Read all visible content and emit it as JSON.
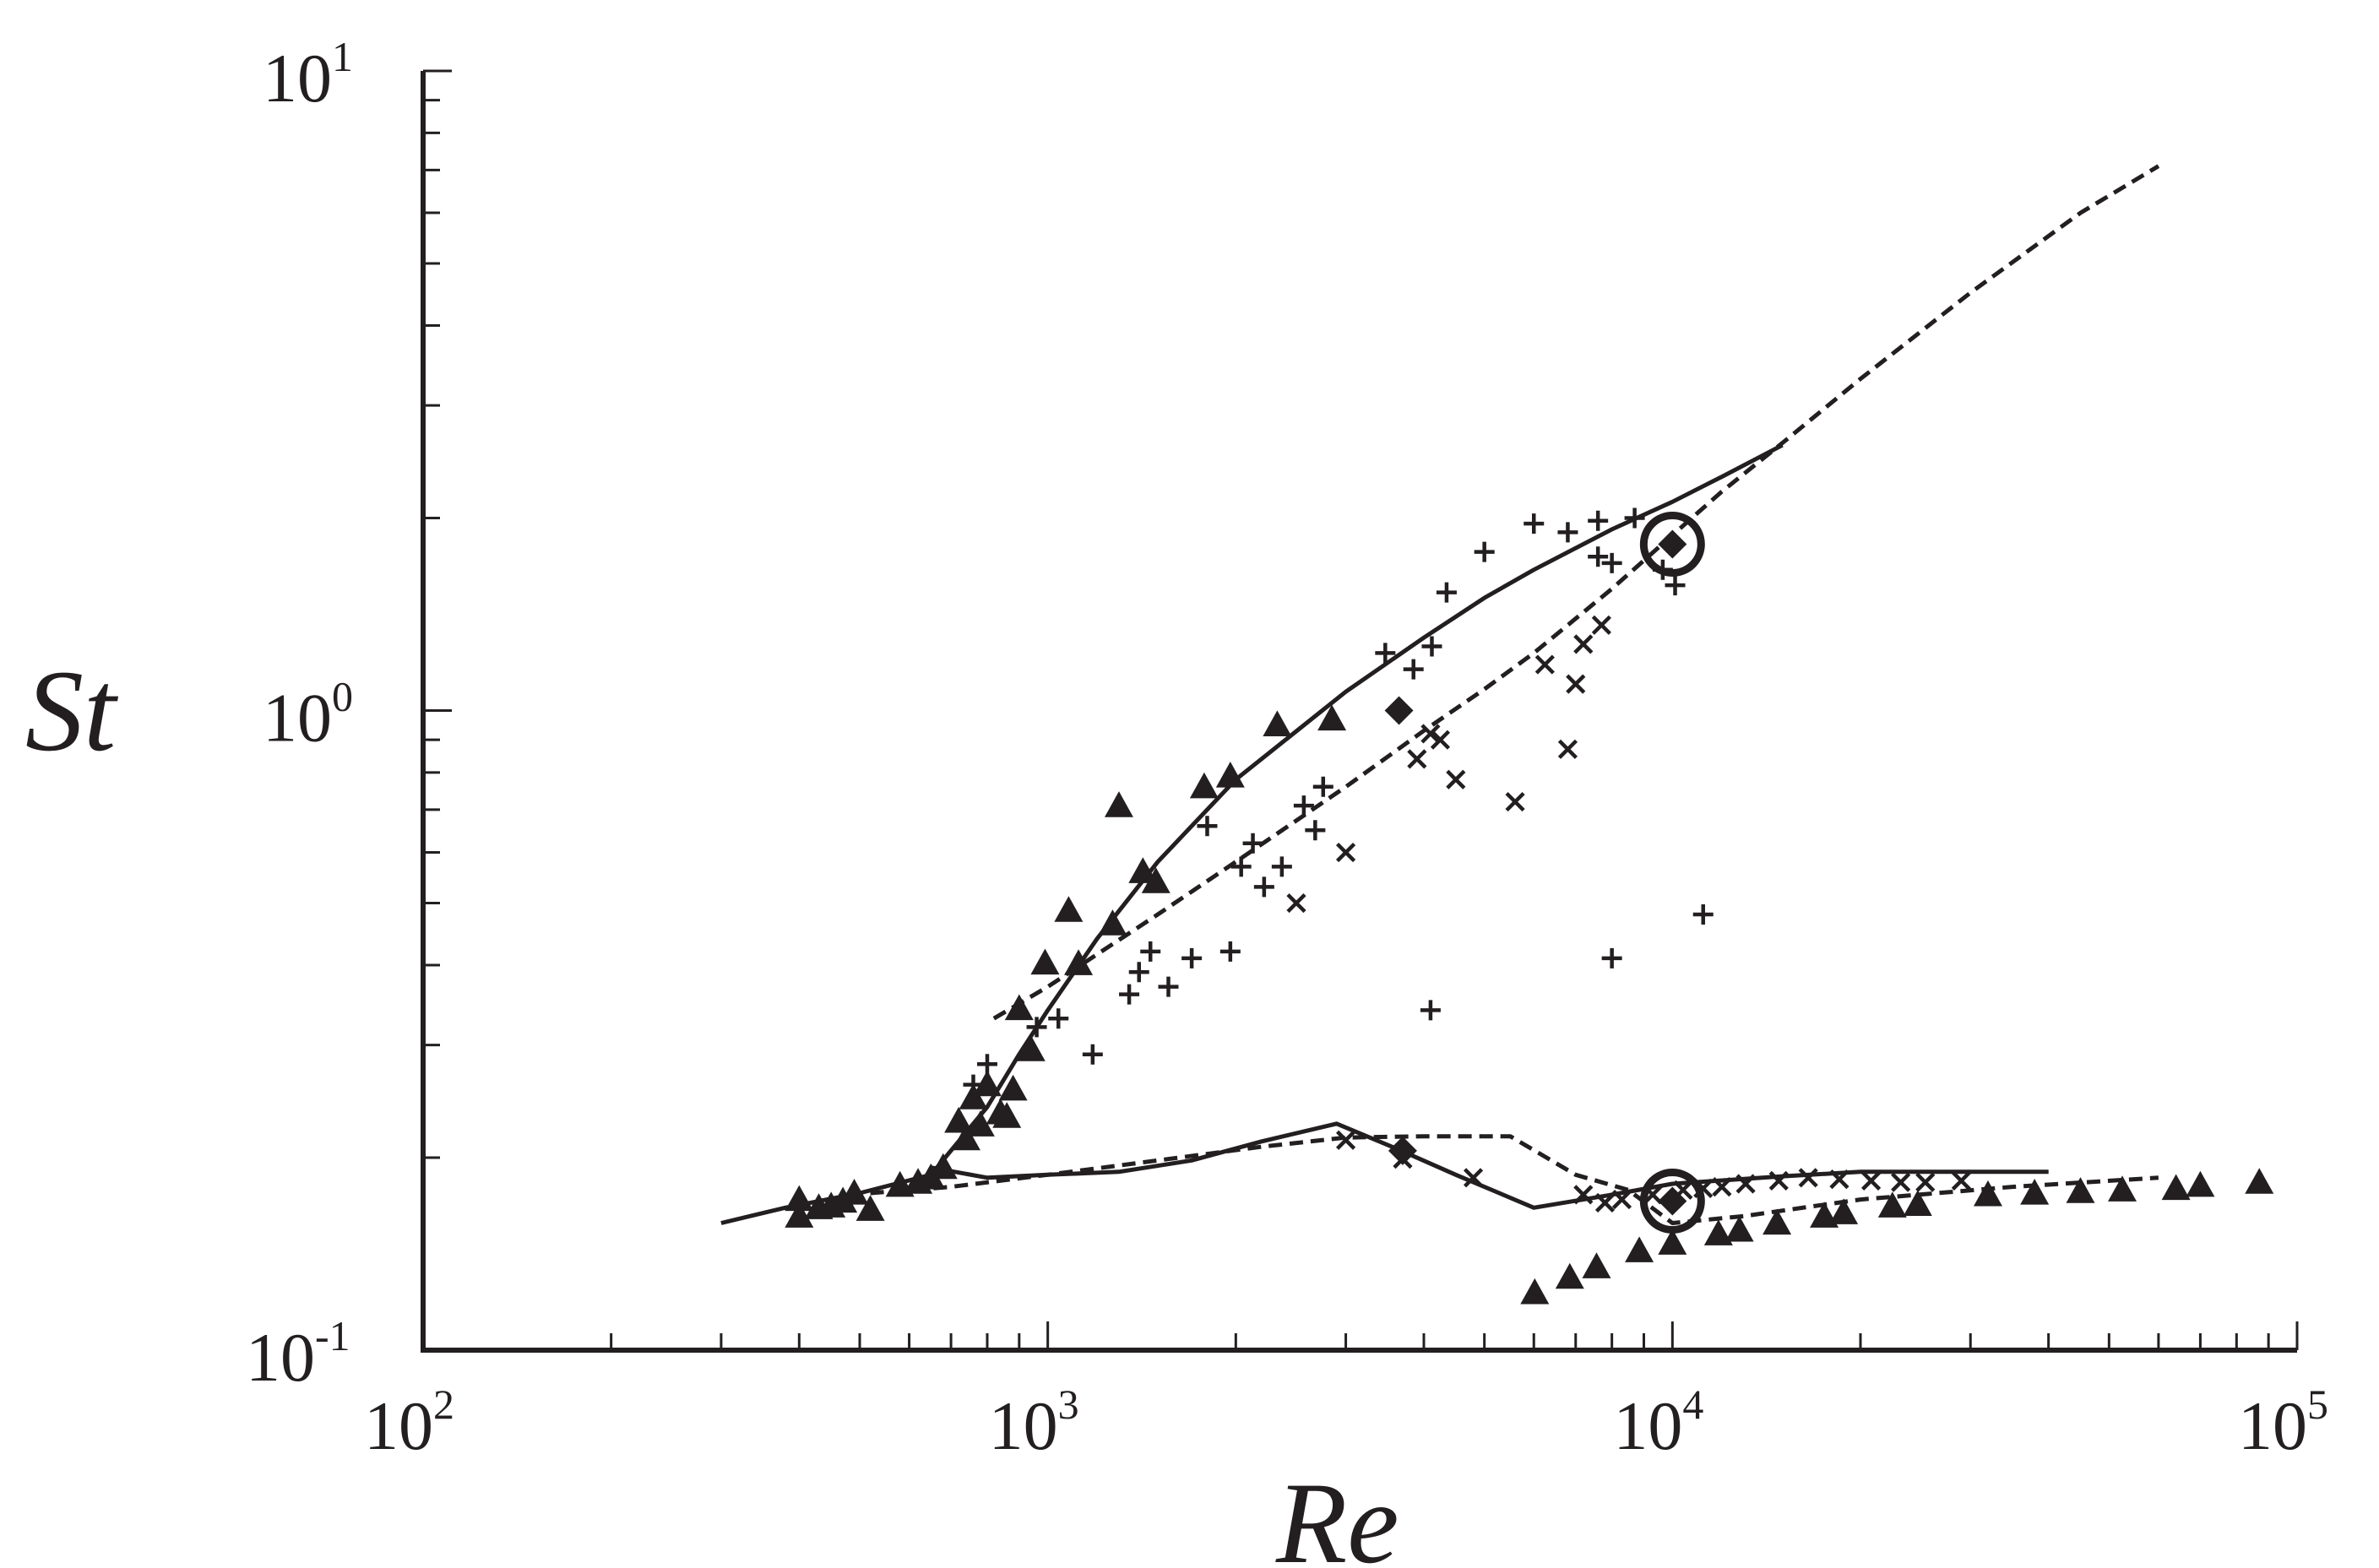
{
  "chart_data": {
    "type": "scatter",
    "title": "",
    "xlabel": "Re",
    "ylabel": "St",
    "xscale": "log",
    "yscale": "log",
    "xlim": [
      100,
      100000
    ],
    "ylim": [
      0.1,
      10
    ],
    "grid": false,
    "legend": "none",
    "x_ticks": [
      {
        "base": "10",
        "exp": "2"
      },
      {
        "base": "10",
        "exp": "3"
      },
      {
        "base": "10",
        "exp": "4"
      },
      {
        "base": "10",
        "exp": "5"
      }
    ],
    "y_ticks": [
      {
        "base": "10",
        "exp": "-1"
      },
      {
        "base": "10",
        "exp": "0"
      },
      {
        "base": "10",
        "exp": "1"
      }
    ],
    "colors": {
      "ink": "#231f20",
      "background": "#ffffff"
    },
    "series": [
      {
        "style": "solid-line",
        "points": [
          [
            300,
            0.158
          ],
          [
            380,
            0.167
          ],
          [
            500,
            0.176
          ],
          [
            650,
            0.188
          ],
          [
            800,
            0.24
          ],
          [
            900,
            0.29
          ],
          [
            1000,
            0.34
          ],
          [
            1200,
            0.44
          ],
          [
            1500,
            0.58
          ],
          [
            2000,
            0.78
          ],
          [
            3000,
            1.07
          ],
          [
            4000,
            1.3
          ],
          [
            5000,
            1.5
          ],
          [
            6000,
            1.66
          ],
          [
            8000,
            1.92
          ],
          [
            10000,
            2.12
          ],
          [
            12000,
            2.32
          ],
          [
            15000,
            2.6
          ]
        ]
      },
      {
        "style": "dashed-line",
        "points": [
          [
            820,
            0.33
          ],
          [
            1000,
            0.37
          ],
          [
            1500,
            0.48
          ],
          [
            2000,
            0.58
          ],
          [
            3000,
            0.76
          ],
          [
            4000,
            0.93
          ],
          [
            5000,
            1.08
          ],
          [
            6000,
            1.23
          ],
          [
            8000,
            1.55
          ],
          [
            10000,
            1.88
          ],
          [
            12000,
            2.2
          ],
          [
            15000,
            2.62
          ],
          [
            20000,
            3.3
          ],
          [
            30000,
            4.5
          ],
          [
            45000,
            6.0
          ],
          [
            60000,
            7.1
          ]
        ]
      },
      {
        "style": "solid-line",
        "points": [
          [
            650,
            0.193
          ],
          [
            800,
            0.186
          ],
          [
            1000,
            0.188
          ],
          [
            1300,
            0.19
          ],
          [
            1700,
            0.198
          ],
          [
            2200,
            0.212
          ],
          [
            2900,
            0.226
          ],
          [
            3600,
            0.207
          ],
          [
            4500,
            0.188
          ],
          [
            6000,
            0.167
          ],
          [
            8000,
            0.175
          ],
          [
            10000,
            0.182
          ],
          [
            15000,
            0.187
          ],
          [
            20000,
            0.19
          ],
          [
            40000,
            0.19
          ]
        ]
      },
      {
        "style": "dashed-line",
        "points": [
          [
            520,
            0.176
          ],
          [
            700,
            0.18
          ],
          [
            1000,
            0.188
          ],
          [
            1500,
            0.198
          ],
          [
            2200,
            0.208
          ],
          [
            3000,
            0.215
          ],
          [
            4000,
            0.216
          ],
          [
            5500,
            0.216
          ],
          [
            7000,
            0.188
          ],
          [
            8500,
            0.178
          ],
          [
            10000,
            0.158
          ],
          [
            13000,
            0.162
          ],
          [
            20000,
            0.172
          ],
          [
            35000,
            0.18
          ],
          [
            60000,
            0.186
          ]
        ]
      },
      {
        "style": "triangle-markers",
        "points": [
          [
            400,
            0.172
          ],
          [
            400,
            0.162
          ],
          [
            430,
            0.167
          ],
          [
            450,
            0.168
          ],
          [
            470,
            0.171
          ],
          [
            490,
            0.176
          ],
          [
            520,
            0.166
          ],
          [
            580,
            0.181
          ],
          [
            620,
            0.183
          ],
          [
            650,
            0.186
          ],
          [
            680,
            0.193
          ],
          [
            720,
            0.228
          ],
          [
            740,
            0.214
          ],
          [
            760,
            0.248
          ],
          [
            780,
            0.225
          ],
          [
            800,
            0.26
          ],
          [
            840,
            0.235
          ],
          [
            860,
            0.232
          ],
          [
            880,
            0.256
          ],
          [
            900,
            0.342
          ],
          [
            940,
            0.295
          ],
          [
            990,
            0.403
          ],
          [
            1080,
            0.487
          ],
          [
            1120,
            0.402
          ],
          [
            1270,
            0.464
          ],
          [
            1300,
            0.71
          ],
          [
            1420,
            0.56
          ],
          [
            1490,
            0.54
          ],
          [
            1780,
            0.76
          ],
          [
            1960,
            0.79
          ],
          [
            2330,
            0.95
          ],
          [
            2850,
            0.97
          ],
          [
            6020,
            0.123
          ],
          [
            6850,
            0.13
          ],
          [
            7560,
            0.135
          ],
          [
            8850,
            0.143
          ],
          [
            10000,
            0.147
          ],
          [
            11850,
            0.152
          ],
          [
            12800,
            0.154
          ],
          [
            14700,
            0.158
          ],
          [
            17500,
            0.162
          ],
          [
            18800,
            0.164
          ],
          [
            22500,
            0.168
          ],
          [
            24700,
            0.169
          ],
          [
            32000,
            0.175
          ],
          [
            38000,
            0.176
          ],
          [
            45000,
            0.177
          ],
          [
            52500,
            0.178
          ],
          [
            64000,
            0.179
          ],
          [
            70000,
            0.181
          ],
          [
            87000,
            0.183
          ]
        ]
      },
      {
        "style": "plus-markers",
        "points": [
          [
            760,
            0.26
          ],
          [
            800,
            0.28
          ],
          [
            960,
            0.32
          ],
          [
            1040,
            0.33
          ],
          [
            1180,
            0.29
          ],
          [
            1350,
            0.36
          ],
          [
            1400,
            0.39
          ],
          [
            1460,
            0.42
          ],
          [
            1560,
            0.37
          ],
          [
            1700,
            0.41
          ],
          [
            1800,
            0.66
          ],
          [
            1960,
            0.42
          ],
          [
            2040,
            0.57
          ],
          [
            2130,
            0.62
          ],
          [
            2220,
            0.53
          ],
          [
            2370,
            0.57
          ],
          [
            2570,
            0.71
          ],
          [
            2680,
            0.65
          ],
          [
            2760,
            0.76
          ],
          [
            3470,
            1.23
          ],
          [
            3850,
            1.16
          ],
          [
            4120,
            1.26
          ],
          [
            4350,
            1.53
          ],
          [
            5000,
            1.77
          ],
          [
            6000,
            1.96
          ],
          [
            6800,
            1.9
          ],
          [
            7600,
            1.98
          ],
          [
            8700,
            2.0
          ],
          [
            9650,
            1.66
          ],
          [
            10100,
            1.57
          ],
          [
            11200,
            0.48
          ],
          [
            4100,
            0.34
          ],
          [
            8000,
            0.41
          ],
          [
            7600,
            1.74
          ],
          [
            8000,
            1.7
          ]
        ]
      },
      {
        "style": "cross-markers",
        "points": [
          [
            2500,
            0.5
          ],
          [
            3000,
            0.6
          ],
          [
            3900,
            0.84
          ],
          [
            4100,
            0.92
          ],
          [
            4250,
            0.9
          ],
          [
            4500,
            0.78
          ],
          [
            5600,
            0.72
          ],
          [
            6250,
            1.18
          ],
          [
            6800,
            0.87
          ],
          [
            7000,
            1.1
          ],
          [
            7200,
            1.27
          ],
          [
            7700,
            1.36
          ],
          [
            7200,
            0.175
          ],
          [
            7800,
            0.17
          ],
          [
            8300,
            0.172
          ],
          [
            9300,
            0.175
          ],
          [
            10400,
            0.178
          ],
          [
            11200,
            0.179
          ],
          [
            12000,
            0.18
          ],
          [
            13100,
            0.182
          ],
          [
            14800,
            0.184
          ],
          [
            16500,
            0.186
          ],
          [
            18500,
            0.185
          ],
          [
            20800,
            0.184
          ],
          [
            23200,
            0.183
          ],
          [
            25400,
            0.183
          ],
          [
            29000,
            0.184
          ],
          [
            3000,
            0.213
          ],
          [
            3700,
            0.199
          ],
          [
            4800,
            0.186
          ]
        ]
      },
      {
        "style": "diamond-markers",
        "points": [
          [
            3650,
            1.0
          ],
          [
            3700,
            0.205
          ],
          [
            10000,
            1.82
          ],
          [
            10000,
            0.171
          ]
        ]
      },
      {
        "style": "circle-highlight",
        "points": [
          [
            10000,
            1.82
          ],
          [
            10000,
            0.171
          ]
        ]
      }
    ]
  }
}
